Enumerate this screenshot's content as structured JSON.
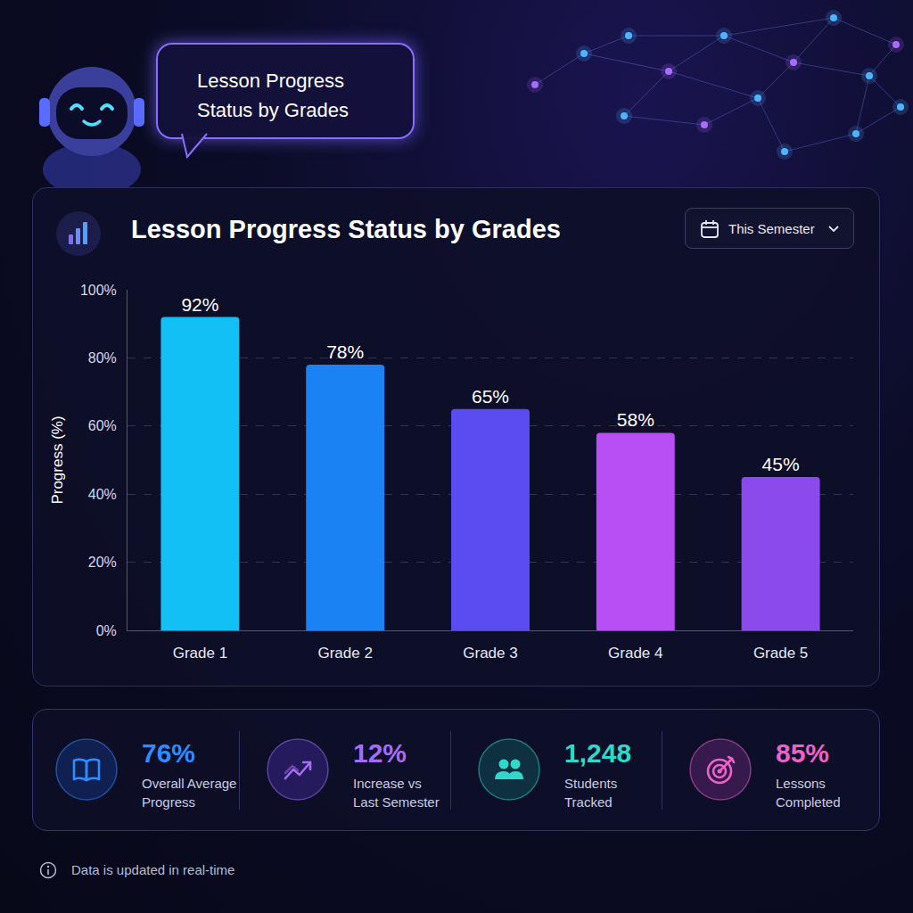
{
  "header": {
    "bubble": "Lesson Progress Status by Grades"
  },
  "chart_data": {
    "type": "bar",
    "title": "Lesson Progress Status by Grades",
    "period": "This Semester",
    "y_label": "Progress (%)",
    "categories": [
      "Grade 1",
      "Grade 2",
      "Grade 3",
      "Grade 4",
      "Grade 5"
    ],
    "values": [
      92,
      78,
      65,
      58,
      45
    ],
    "value_labels": [
      "92%",
      "78%",
      "65%",
      "58%",
      "45%"
    ],
    "colors": [
      "#12c0f6",
      "#1a82f2",
      "#5a4cf0",
      "#b84ff4",
      "#8a4aec"
    ],
    "ylim": [
      0,
      100
    ],
    "yticks": [
      {
        "value": 0,
        "label": "0%"
      },
      {
        "value": 20,
        "label": "20%"
      },
      {
        "value": 40,
        "label": "40%"
      },
      {
        "value": 60,
        "label": "60%"
      },
      {
        "value": 80,
        "label": "80%"
      },
      {
        "value": 100,
        "label": "100%"
      }
    ],
    "grid": true,
    "data_labels": true
  },
  "kpis": [
    {
      "value": "76%",
      "label": "Overall Average Progress"
    },
    {
      "value": "12%",
      "label": "Increase vs Last Semester"
    },
    {
      "value": "1,248",
      "label": "Students Tracked"
    },
    {
      "value": "85%",
      "label": "Lessons Completed"
    }
  ],
  "footer": "Data is updated in real-time"
}
